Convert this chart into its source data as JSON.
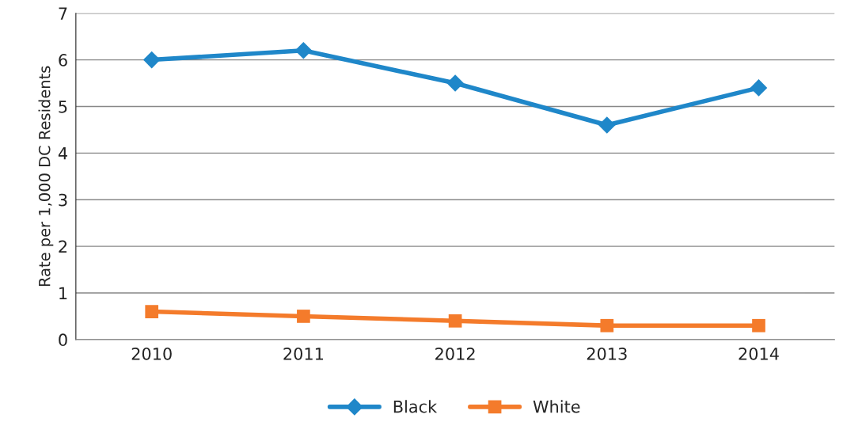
{
  "chart_data": {
    "type": "line",
    "ylabel": "Rate per 1,000 DC Residents",
    "categories": [
      "2010",
      "2011",
      "2012",
      "2013",
      "2014"
    ],
    "series": [
      {
        "name": "Black",
        "color": "#1f87c9",
        "marker": "diamond",
        "values": [
          6.0,
          6.2,
          5.5,
          4.6,
          5.4
        ]
      },
      {
        "name": "White",
        "color": "#f47b2b",
        "marker": "square",
        "values": [
          0.6,
          0.5,
          0.4,
          0.3,
          0.3
        ]
      }
    ],
    "ylim": [
      0,
      7
    ],
    "yticks": [
      0,
      1,
      2,
      3,
      4,
      5,
      6,
      7
    ],
    "grid": "y",
    "legend": "bottom"
  }
}
